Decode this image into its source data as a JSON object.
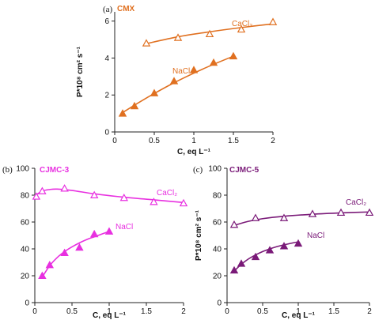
{
  "chart_data": [
    {
      "type": "scatter",
      "panel": "(a)",
      "title": "CMX",
      "xlabel": "C, eq L⁻¹",
      "ylabel": "P*10⁸ cm² s⁻¹",
      "xlim": [
        0,
        2
      ],
      "ylim": [
        0,
        6.5
      ],
      "xticks": [
        "0",
        "0.5",
        "1",
        "1.5",
        "2"
      ],
      "yticks": [
        "0",
        "2",
        "4",
        "6"
      ],
      "color": "#E07020",
      "series": [
        {
          "name": "CaCl₂",
          "marker": "open-triangle",
          "x": [
            0.4,
            0.8,
            1.2,
            1.6,
            2.0
          ],
          "y": [
            4.8,
            5.1,
            5.3,
            5.55,
            5.95
          ],
          "fit_x": [
            0.4,
            0.8,
            1.2,
            1.6,
            2.0
          ],
          "fit_y": [
            4.78,
            5.15,
            5.42,
            5.65,
            5.85
          ]
        },
        {
          "name": "NaCl",
          "marker": "filled-triangle",
          "x": [
            0.1,
            0.25,
            0.5,
            0.75,
            1.0,
            1.25,
            1.5
          ],
          "y": [
            1.0,
            1.4,
            2.1,
            2.75,
            3.35,
            3.75,
            4.1
          ],
          "fit_x": [
            0.1,
            0.3,
            0.5,
            0.7,
            0.9,
            1.1,
            1.3,
            1.5
          ],
          "fit_y": [
            1.05,
            1.58,
            2.08,
            2.55,
            2.98,
            3.38,
            3.75,
            4.1
          ]
        }
      ]
    },
    {
      "type": "scatter",
      "panel": "(b)",
      "title": "CJMC-3",
      "xlabel": "C, eq L⁻¹",
      "ylabel": "",
      "xlim": [
        0,
        2
      ],
      "ylim": [
        0,
        100
      ],
      "xticks": [
        "0",
        "0.5",
        "1",
        "1.5",
        "2"
      ],
      "yticks": [
        "0",
        "20",
        "40",
        "60",
        "80",
        "100"
      ],
      "color": "#E830E0",
      "series": [
        {
          "name": "CaCl₂",
          "marker": "open-triangle",
          "x": [
            0.02,
            0.1,
            0.4,
            0.8,
            1.2,
            1.6,
            2.0
          ],
          "y": [
            79,
            83,
            85,
            80,
            78,
            75,
            74
          ],
          "fit_x": [
            0.0,
            0.1,
            0.2,
            0.3,
            0.5,
            0.8,
            1.2,
            1.6,
            2.0
          ],
          "fit_y": [
            79.5,
            83,
            84.2,
            84.5,
            83.5,
            81,
            78.5,
            76.5,
            74.5
          ]
        },
        {
          "name": "NaCl",
          "marker": "filled-triangle",
          "x": [
            0.1,
            0.2,
            0.4,
            0.6,
            0.8,
            1.0
          ],
          "y": [
            20,
            28,
            37,
            41,
            51,
            53
          ],
          "fit_x": [
            0.1,
            0.2,
            0.3,
            0.4,
            0.5,
            0.6,
            0.7,
            0.8,
            0.9,
            1.0
          ],
          "fit_y": [
            19,
            27.5,
            33.5,
            38,
            41.5,
            44.5,
            47,
            49,
            51,
            53
          ]
        }
      ]
    },
    {
      "type": "scatter",
      "panel": "(c)",
      "title": "CJMC-5",
      "xlabel": "C, eq L⁻¹",
      "ylabel": "P*10⁸ cm² s⁻¹",
      "xlim": [
        0,
        2
      ],
      "ylim": [
        0,
        100
      ],
      "xticks": [
        "0",
        "0.5",
        "1",
        "1.5",
        "2"
      ],
      "yticks": [
        "0",
        "20",
        "40",
        "60",
        "80",
        "100"
      ],
      "color": "#7A1A78",
      "series": [
        {
          "name": "CaCl₂",
          "marker": "open-triangle",
          "x": [
            0.1,
            0.4,
            0.8,
            1.2,
            1.6,
            2.0
          ],
          "y": [
            58,
            63,
            63,
            66,
            67,
            67
          ],
          "fit_x": [
            0.1,
            0.3,
            0.5,
            0.8,
            1.2,
            1.6,
            2.0
          ],
          "fit_y": [
            57.5,
            60.5,
            62.5,
            64.3,
            65.8,
            66.8,
            67.5
          ]
        },
        {
          "name": "NaCl",
          "marker": "filled-triangle",
          "x": [
            0.1,
            0.2,
            0.4,
            0.6,
            0.8,
            1.0
          ],
          "y": [
            24,
            29,
            34,
            39,
            42,
            44
          ],
          "fit_x": [
            0.1,
            0.2,
            0.3,
            0.4,
            0.5,
            0.6,
            0.7,
            0.8,
            0.9,
            1.0
          ],
          "fit_y": [
            23.5,
            28.5,
            32.5,
            35.5,
            38,
            40,
            41.7,
            43,
            44.2,
            45.2
          ]
        }
      ]
    }
  ]
}
